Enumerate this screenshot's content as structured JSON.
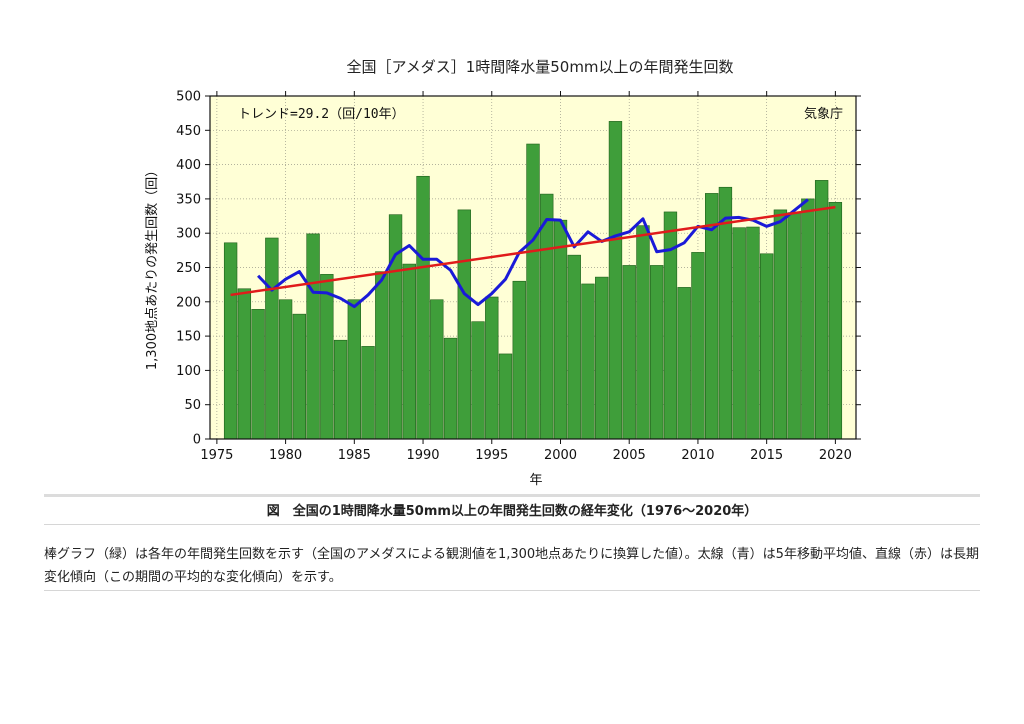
{
  "chart_data": {
    "type": "bar",
    "title": "全国［アメダス］1時間降水量50mm以上の年間発生回数",
    "xlabel": "年",
    "ylabel": "1,300地点あたりの発生回数（回）",
    "trend_text": "トレンド=29.2（回/10年）",
    "source_text": "気象庁",
    "xlim": [
      1974.5,
      2021.5
    ],
    "ylim": [
      0,
      500
    ],
    "x_ticks": [
      1975,
      1980,
      1985,
      1990,
      1995,
      2000,
      2005,
      2010,
      2015,
      2020
    ],
    "y_ticks": [
      0,
      50,
      100,
      150,
      200,
      250,
      300,
      350,
      400,
      450,
      500
    ],
    "grid": true,
    "colors": {
      "bars": "#3f9e3a",
      "bar_edge": "#1e5e1a",
      "moving_average": "#1a1ad8",
      "trend_line": "#e01b1b",
      "plot_background": "#ffffd6"
    },
    "series": [
      {
        "type": "bar",
        "x": [
          1976,
          1977,
          1978,
          1979,
          1980,
          1981,
          1982,
          1983,
          1984,
          1985,
          1986,
          1987,
          1988,
          1989,
          1990,
          1991,
          1992,
          1993,
          1994,
          1995,
          1996,
          1997,
          1998,
          1999,
          2000,
          2001,
          2002,
          2003,
          2004,
          2005,
          2006,
          2007,
          2008,
          2009,
          2010,
          2011,
          2012,
          2013,
          2014,
          2015,
          2016,
          2017,
          2018,
          2019,
          2020
        ],
        "values": [
          286,
          219,
          189,
          293,
          203,
          182,
          299,
          240,
          144,
          203,
          135,
          244,
          327,
          255,
          383,
          203,
          147,
          334,
          171,
          207,
          124,
          230,
          430,
          357,
          319,
          268,
          226,
          236,
          463,
          253,
          311,
          253,
          331,
          221,
          272,
          358,
          367,
          308,
          309,
          270,
          334,
          330,
          350,
          377,
          345
        ]
      },
      {
        "type": "line",
        "x": [
          1978,
          1979,
          1980,
          1981,
          1982,
          1983,
          1984,
          1985,
          1986,
          1987,
          1988,
          1989,
          1990,
          1991,
          1992,
          1993,
          1994,
          1995,
          1996,
          1997,
          1998,
          1999,
          2000,
          2001,
          2002,
          2003,
          2004,
          2005,
          2006,
          2007,
          2008,
          2009,
          2010,
          2011,
          2012,
          2013,
          2014,
          2015,
          2016,
          2017,
          2018
        ],
        "values": [
          238,
          217,
          233,
          244,
          214,
          213,
          205,
          193,
          210,
          232,
          269,
          282,
          262,
          262,
          246,
          212,
          196,
          212,
          233,
          272,
          290,
          320,
          319,
          280,
          302,
          288,
          296,
          302,
          321,
          273,
          276,
          286,
          310,
          305,
          322,
          323,
          319,
          310,
          317,
          333,
          349
        ]
      },
      {
        "type": "line",
        "x": [
          1976,
          2020
        ],
        "values": [
          210,
          338
        ]
      }
    ]
  },
  "caption": "図　全国の1時間降水量50mm以上の年間発生回数の経年変化（1976～2020年）",
  "description": "棒グラフ（緑）は各年の年間発生回数を示す（全国のアメダスによる観測値を1,300地点あたりに換算した値）。太線（青）は5年移動平均値、直線（赤）は長期変化傾向（この期間の平均的な変化傾向）を示す。"
}
